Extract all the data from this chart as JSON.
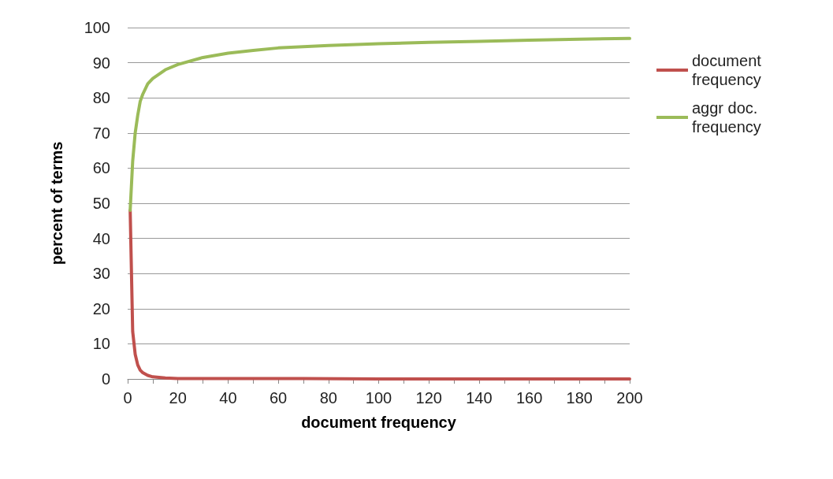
{
  "chart_data": {
    "type": "line",
    "xlabel": "document frequency",
    "ylabel": "percent of terms",
    "xlim": [
      0,
      200
    ],
    "ylim": [
      0,
      100
    ],
    "xticks": [
      0,
      {
        "value": 10,
        "label": null
      },
      20,
      {
        "value": 30,
        "label": null
      },
      40,
      {
        "value": 50,
        "label": null
      },
      60,
      {
        "value": 70,
        "label": null
      },
      80,
      {
        "value": 90,
        "label": null
      },
      100,
      {
        "value": 110,
        "label": null
      },
      120,
      {
        "value": 130,
        "label": null
      },
      140,
      {
        "value": 150,
        "label": null
      },
      160,
      {
        "value": 170,
        "label": null
      },
      180,
      {
        "value": 190,
        "label": null
      },
      200
    ],
    "yticks": [
      0,
      10,
      20,
      30,
      40,
      50,
      60,
      70,
      80,
      90,
      100
    ],
    "grid": "y",
    "legend": "right",
    "marker": "none",
    "line_style": "solid",
    "series": [
      {
        "name": "document frequency",
        "color": "#c0504d",
        "x": [
          1,
          2,
          3,
          4,
          5,
          6,
          8,
          10,
          15,
          20,
          40,
          70,
          100,
          150,
          200
        ],
        "values": [
          48,
          13.5,
          7,
          4,
          2.5,
          1.8,
          1,
          0.6,
          0.3,
          0.1,
          0.1,
          0.1,
          0,
          0,
          0
        ]
      },
      {
        "name": "aggr doc. frequency",
        "color": "#9bbb59",
        "x": [
          1,
          2,
          3,
          4,
          5,
          6,
          8,
          10,
          15,
          20,
          30,
          40,
          50,
          60,
          80,
          100,
          120,
          140,
          160,
          180,
          200
        ],
        "values": [
          48,
          62,
          70,
          75,
          79,
          81,
          84,
          85.5,
          88,
          89.5,
          91.5,
          92.7,
          93.5,
          94.2,
          94.9,
          95.4,
          95.8,
          96.1,
          96.4,
          96.7,
          96.9
        ]
      }
    ]
  }
}
